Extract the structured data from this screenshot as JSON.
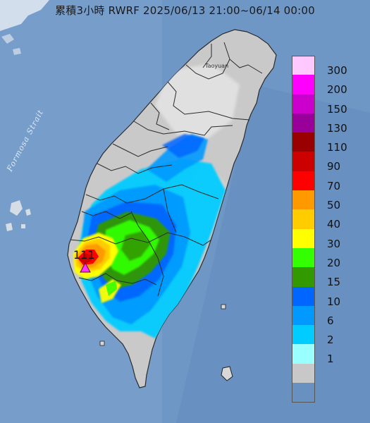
{
  "title": "累積3小時 RWRF 2025/06/13 21:00~06/14 00:00",
  "map_labels": {
    "strait": "Formosa Strait",
    "city": "Taoyuan"
  },
  "peak": {
    "value_label": "111",
    "marker": "triangle-marker-icon",
    "marker_color": "#ff33ff"
  },
  "legend": [
    {
      "label": "300",
      "color": "#ffc8ff"
    },
    {
      "label": "200",
      "color": "#ff00ff"
    },
    {
      "label": "150",
      "color": "#cc00cc"
    },
    {
      "label": "130",
      "color": "#990099"
    },
    {
      "label": "110",
      "color": "#990000"
    },
    {
      "label": "90",
      "color": "#cc0000"
    },
    {
      "label": "70",
      "color": "#ff0000"
    },
    {
      "label": "50",
      "color": "#ff9900"
    },
    {
      "label": "40",
      "color": "#ffcc00"
    },
    {
      "label": "30",
      "color": "#ffff00"
    },
    {
      "label": "20",
      "color": "#33ff00"
    },
    {
      "label": "15",
      "color": "#339900"
    },
    {
      "label": "10",
      "color": "#0066ff"
    },
    {
      "label": "6",
      "color": "#0099ff"
    },
    {
      "label": "2",
      "color": "#00ccff"
    },
    {
      "label": "1",
      "color": "#99ffff"
    },
    {
      "label": "",
      "color": "#c8c8c8"
    }
  ],
  "colors": {
    "sea": "#6e96c6",
    "land": "#c9c9c9"
  }
}
